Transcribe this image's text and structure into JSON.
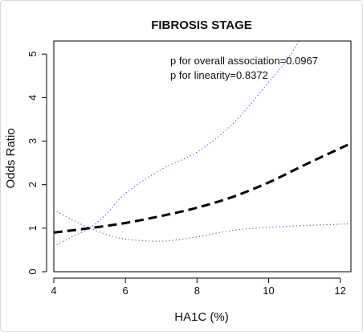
{
  "chart_data": {
    "type": "line",
    "title": "FIBROSIS STAGE",
    "xlabel": "HA1C (%)",
    "ylabel": "Odds Ratio",
    "xlim": [
      4,
      12.3
    ],
    "ylim": [
      0,
      5.3
    ],
    "xticks": [
      4,
      6,
      8,
      10,
      12
    ],
    "yticks": [
      0,
      1,
      2,
      3,
      4,
      5
    ],
    "grid": false,
    "annotations": [
      "p for overall association=0.0967",
      "p for linearity=0.8372"
    ],
    "series": [
      {
        "role": "estimate",
        "style": "dashed",
        "color": "#000000",
        "x": [
          4,
          5,
          6,
          7,
          8,
          9,
          10,
          11,
          12.3
        ],
        "y": [
          0.9,
          1.0,
          1.12,
          1.28,
          1.47,
          1.72,
          2.05,
          2.45,
          2.95
        ]
      },
      {
        "role": "upper-ci",
        "style": "dotted",
        "color": "#4a4ad8",
        "x": [
          4,
          4.5,
          5,
          5.5,
          6,
          7,
          8,
          9,
          10,
          10.5,
          10.85
        ],
        "y": [
          0.58,
          0.8,
          1.0,
          1.35,
          1.8,
          2.35,
          2.75,
          3.4,
          4.35,
          4.85,
          5.3
        ]
      },
      {
        "role": "lower-ci",
        "style": "dotted",
        "color": "#4a4ad8",
        "x": [
          4,
          4.5,
          5,
          5.5,
          6,
          7,
          8,
          9,
          10,
          11,
          12.3
        ],
        "y": [
          1.42,
          1.2,
          1.0,
          0.85,
          0.75,
          0.7,
          0.8,
          0.95,
          1.02,
          1.06,
          1.1
        ]
      }
    ]
  }
}
